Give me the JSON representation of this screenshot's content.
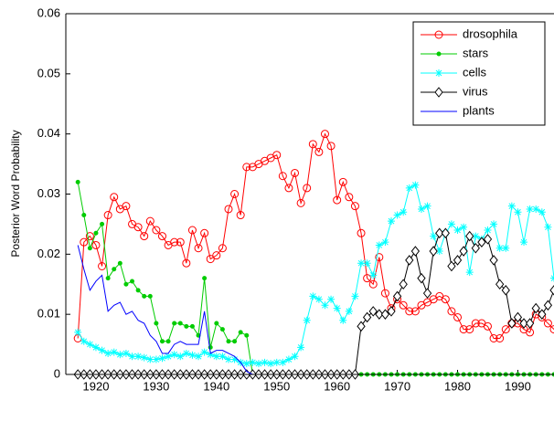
{
  "chart_data": {
    "type": "line",
    "ylabel": "Posterior Word Probability",
    "xlim": [
      1915,
      1996
    ],
    "ylim": [
      0,
      0.06
    ],
    "xticks": [
      1920,
      1930,
      1940,
      1950,
      1960,
      1970,
      1980,
      1990
    ],
    "yticks": [
      0,
      0.01,
      0.02,
      0.03,
      0.04,
      0.05,
      0.06
    ],
    "legend": "upper-right",
    "x": [
      1917,
      1918,
      1919,
      1920,
      1921,
      1922,
      1923,
      1924,
      1925,
      1926,
      1927,
      1928,
      1929,
      1930,
      1931,
      1932,
      1933,
      1934,
      1935,
      1936,
      1937,
      1938,
      1939,
      1940,
      1941,
      1942,
      1943,
      1944,
      1945,
      1946,
      1947,
      1948,
      1949,
      1950,
      1951,
      1952,
      1953,
      1954,
      1955,
      1956,
      1957,
      1958,
      1959,
      1960,
      1961,
      1962,
      1963,
      1964,
      1965,
      1966,
      1967,
      1968,
      1969,
      1970,
      1971,
      1972,
      1973,
      1974,
      1975,
      1976,
      1977,
      1978,
      1979,
      1980,
      1981,
      1982,
      1983,
      1984,
      1985,
      1986,
      1987,
      1988,
      1989,
      1990,
      1991,
      1992,
      1993,
      1994,
      1995,
      1996
    ],
    "series": [
      {
        "name": "drosophila",
        "color": "#ff0000",
        "marker": "circle",
        "values": [
          0.006,
          0.022,
          0.023,
          0.0215,
          0.018,
          0.0265,
          0.0295,
          0.0275,
          0.028,
          0.025,
          0.0245,
          0.023,
          0.0255,
          0.024,
          0.023,
          0.0215,
          0.022,
          0.022,
          0.0185,
          0.024,
          0.021,
          0.0235,
          0.0192,
          0.0198,
          0.021,
          0.0275,
          0.03,
          0.0265,
          0.0345,
          0.0345,
          0.035,
          0.0355,
          0.036,
          0.0365,
          0.033,
          0.031,
          0.0335,
          0.0285,
          0.031,
          0.0383,
          0.037,
          0.04,
          0.038,
          0.029,
          0.032,
          0.0295,
          0.028,
          0.0235,
          0.016,
          0.015,
          0.0195,
          0.0135,
          0.011,
          0.0125,
          0.0115,
          0.0105,
          0.0105,
          0.0115,
          0.012,
          0.0125,
          0.013,
          0.0125,
          0.0105,
          0.0095,
          0.0075,
          0.0075,
          0.0085,
          0.0085,
          0.008,
          0.006,
          0.006,
          0.0075,
          0.0085,
          0.0085,
          0.0075,
          0.007,
          0.01,
          0.0095,
          0.0085,
          0.0075
        ]
      },
      {
        "name": "stars",
        "color": "#00cc00",
        "marker": "dot",
        "values": [
          0.032,
          0.0265,
          0.021,
          0.0235,
          0.025,
          0.016,
          0.0175,
          0.0185,
          0.015,
          0.0155,
          0.014,
          0.013,
          0.013,
          0.0085,
          0.0055,
          0.0055,
          0.0085,
          0.0085,
          0.008,
          0.008,
          0.0065,
          0.016,
          0.0045,
          0.0085,
          0.0075,
          0.0055,
          0.0055,
          0.007,
          0.0065,
          0,
          0,
          0,
          0,
          0,
          0,
          0,
          0,
          0,
          0,
          0,
          0,
          0,
          0,
          0,
          0,
          0,
          0,
          0,
          0,
          0,
          0,
          0,
          0,
          0,
          0,
          0,
          0,
          0,
          0,
          0,
          0,
          0,
          0,
          0,
          0,
          0,
          0,
          0,
          0,
          0,
          0,
          0,
          0,
          0,
          0,
          0,
          0,
          0,
          0,
          0
        ]
      },
      {
        "name": "cells",
        "color": "#00ffff",
        "marker": "asterisk",
        "values": [
          0.007,
          0.0055,
          0.005,
          0.0045,
          0.004,
          0.0035,
          0.0037,
          0.0033,
          0.0035,
          0.003,
          0.003,
          0.0028,
          0.0025,
          0.0025,
          0.0027,
          0.003,
          0.0033,
          0.003,
          0.0035,
          0.0032,
          0.003,
          0.0037,
          0.0033,
          0.003,
          0.003,
          0.0025,
          0.0025,
          0.002,
          0.0018,
          0.002,
          0.0018,
          0.002,
          0.0018,
          0.002,
          0.002,
          0.0025,
          0.003,
          0.0045,
          0.009,
          0.013,
          0.0125,
          0.0115,
          0.0125,
          0.011,
          0.009,
          0.0105,
          0.013,
          0.0185,
          0.0185,
          0.0165,
          0.0215,
          0.022,
          0.0255,
          0.0265,
          0.027,
          0.031,
          0.0315,
          0.0275,
          0.028,
          0.023,
          0.0205,
          0.0235,
          0.025,
          0.024,
          0.0245,
          0.017,
          0.023,
          0.0225,
          0.024,
          0.025,
          0.021,
          0.021,
          0.028,
          0.027,
          0.022,
          0.0275,
          0.0275,
          0.027,
          0.0245,
          0.016
        ]
      },
      {
        "name": "virus",
        "color": "#000000",
        "marker": "diamond",
        "values": [
          0,
          0,
          0,
          0,
          0,
          0,
          0,
          0,
          0,
          0,
          0,
          0,
          0,
          0,
          0,
          0,
          0,
          0,
          0,
          0,
          0,
          0,
          0,
          0,
          0,
          0,
          0,
          0,
          0,
          0,
          0,
          0,
          0,
          0,
          0,
          0,
          0,
          0,
          0,
          0,
          0,
          0,
          0,
          0,
          0,
          0,
          0,
          0.008,
          0.0095,
          0.0105,
          0.01,
          0.01,
          0.0105,
          0.013,
          0.015,
          0.019,
          0.0205,
          0.016,
          0.0135,
          0.0205,
          0.0235,
          0.0235,
          0.018,
          0.019,
          0.0205,
          0.023,
          0.021,
          0.022,
          0.0225,
          0.019,
          0.015,
          0.014,
          0.0085,
          0.0095,
          0.0085,
          0.0085,
          0.011,
          0.01,
          0.0115,
          0.014
        ]
      },
      {
        "name": "plants",
        "color": "#0000ff",
        "marker": "none",
        "values": [
          0.0215,
          0.0175,
          0.014,
          0.0155,
          0.0165,
          0.0105,
          0.0115,
          0.012,
          0.01,
          0.0105,
          0.009,
          0.0085,
          0.0065,
          0.0055,
          0.0035,
          0.0035,
          0.005,
          0.0055,
          0.005,
          0.005,
          0.005,
          0.0105,
          0.0035,
          0.004,
          0.004,
          0.0035,
          0.003,
          0.002,
          0.0005,
          0,
          0,
          0,
          0,
          0,
          0,
          0,
          0,
          0,
          0,
          0,
          0,
          0,
          0,
          0,
          0,
          0,
          0,
          0,
          0,
          0,
          0,
          0,
          0,
          0,
          0,
          0,
          0,
          0,
          0,
          0,
          0,
          0,
          0,
          0,
          0,
          0,
          0,
          0,
          0,
          0,
          0,
          0,
          0,
          0,
          0,
          0,
          0,
          0,
          0,
          0
        ]
      }
    ]
  }
}
